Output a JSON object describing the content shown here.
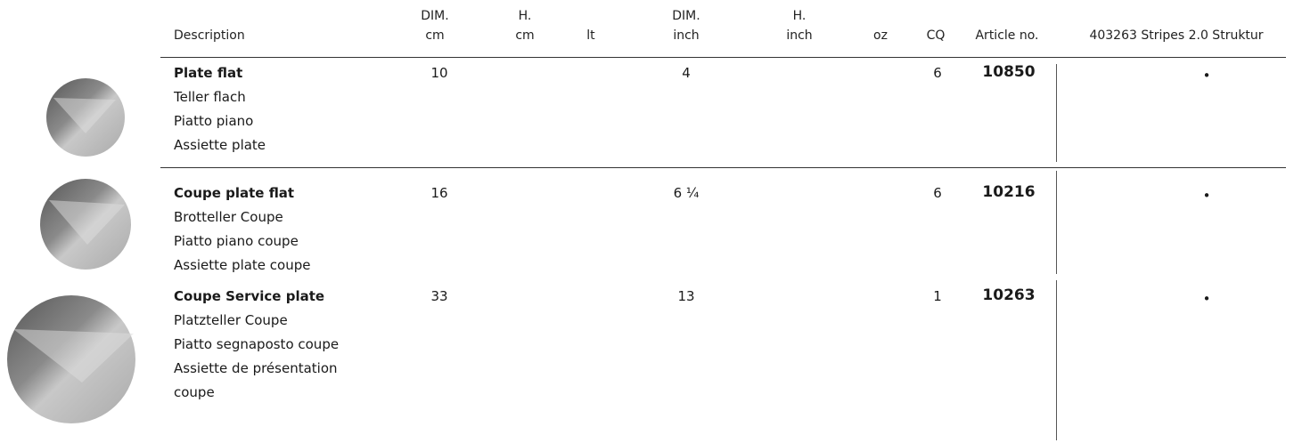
{
  "table": {
    "header": [
      [
        "Description"
      ],
      [
        "DIM.",
        "cm"
      ],
      [
        "H.",
        "cm"
      ],
      [
        "lt"
      ],
      [
        "DIM.",
        "inch"
      ],
      [
        "H.",
        "inch"
      ],
      [
        "oz"
      ],
      [
        "CQ"
      ],
      [
        "Article no."
      ],
      [
        "403263 Stripes 2.0 Struktur"
      ]
    ],
    "rows": [
      {
        "description": [
          "Plate flat",
          "Teller flach",
          "Piatto piano",
          "Assiette plate"
        ],
        "dim_cm": "10",
        "dim_inch": "4",
        "cq": "6",
        "article": "10850",
        "mark": "•"
      },
      {
        "description": [
          "Coupe plate flat",
          "Brotteller Coupe",
          "Piatto piano coupe",
          "Assiette plate coupe"
        ],
        "dim_cm": "16",
        "dim_inch": "6 ¼",
        "cq": "6",
        "article": "10216",
        "mark": "•"
      },
      {
        "description": [
          "Coupe Service plate",
          "Platzteller Coupe",
          "Piatto segnaposto coupe",
          "Assiette de présentation",
          "coupe"
        ],
        "dim_cm": "33",
        "dim_inch": "13",
        "cq": "1",
        "article": "10263",
        "mark": "•"
      }
    ]
  }
}
